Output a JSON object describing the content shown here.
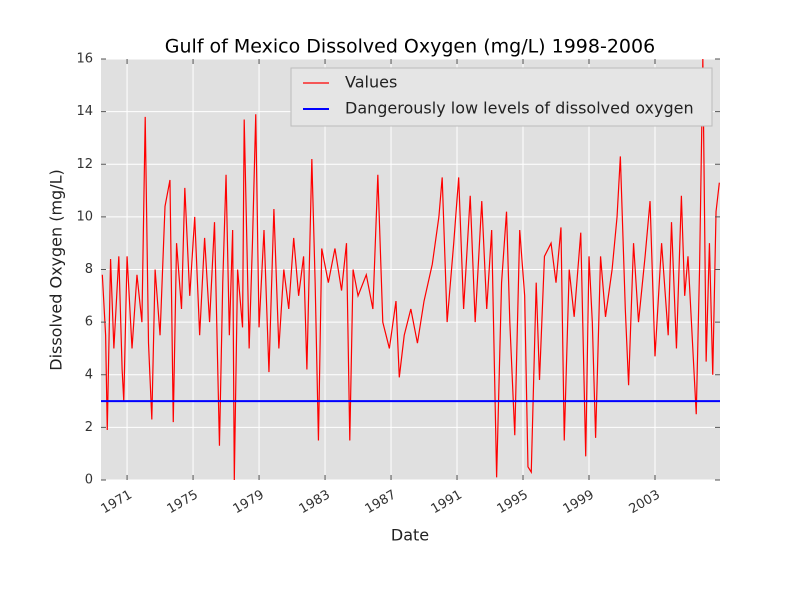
{
  "chart_data": {
    "type": "line",
    "title": "Gulf of Mexico Dissolved Oxygen (mg/L) 1998-2006",
    "x_label": "Date",
    "y_label": "Dissolved Oxygen (mg/L)",
    "xlim": [
      1969.42,
      2006.94
    ],
    "ylim": [
      0,
      16
    ],
    "xticks": [
      1971,
      1975,
      1979,
      1983,
      1987,
      1991,
      1995,
      1999,
      2003
    ],
    "yticks": [
      0,
      2,
      4,
      6,
      8,
      10,
      12,
      14,
      16
    ],
    "grid": true,
    "legend": "upper right",
    "x": [
      1969.5,
      1969.7,
      1969.8,
      1970.0,
      1970.2,
      1970.5,
      1970.7,
      1970.8,
      1971.0,
      1971.3,
      1971.6,
      1971.9,
      1972.1,
      1972.3,
      1972.5,
      1972.7,
      1973.0,
      1973.3,
      1973.6,
      1973.8,
      1974.0,
      1974.3,
      1974.5,
      1974.8,
      1975.1,
      1975.4,
      1975.7,
      1976.0,
      1976.3,
      1976.6,
      1976.8,
      1977.0,
      1977.2,
      1977.4,
      1977.5,
      1977.7,
      1978.0,
      1978.1,
      1978.4,
      1978.6,
      1978.8,
      1979.0,
      1979.3,
      1979.6,
      1979.9,
      1980.2,
      1980.5,
      1980.8,
      1981.1,
      1981.4,
      1981.7,
      1981.9,
      1982.2,
      1982.4,
      1982.6,
      1982.8,
      1983.2,
      1983.6,
      1984.0,
      1984.3,
      1984.5,
      1984.7,
      1985.0,
      1985.5,
      1985.9,
      1986.2,
      1986.5,
      1986.9,
      1987.3,
      1987.5,
      1987.8,
      1988.2,
      1988.6,
      1989.0,
      1989.5,
      1989.9,
      1990.1,
      1990.4,
      1990.8,
      1991.1,
      1991.4,
      1991.8,
      1992.1,
      1992.5,
      1992.8,
      1993.1,
      1993.4,
      1993.7,
      1994.0,
      1994.2,
      1994.5,
      1994.8,
      1995.1,
      1995.3,
      1995.5,
      1995.8,
      1996.0,
      1996.3,
      1996.7,
      1997.0,
      1997.3,
      1997.5,
      1997.8,
      1998.1,
      1998.5,
      1998.8,
      1999.0,
      1999.2,
      1999.4,
      1999.7,
      2000.0,
      2000.4,
      2000.7,
      2000.9,
      2001.2,
      2001.4,
      2001.7,
      2002.0,
      2002.4,
      2002.7,
      2003.0,
      2003.4,
      2003.8,
      2004.0,
      2004.3,
      2004.6,
      2004.8,
      2005.0,
      2005.5,
      2005.7,
      2005.9,
      2006.1,
      2006.3,
      2006.5,
      2006.7,
      2006.9
    ],
    "series": [
      {
        "name": "Values",
        "color": "#ff0000",
        "values": [
          7.8,
          5.5,
          1.9,
          8.4,
          5.0,
          8.5,
          4.2,
          3.0,
          8.5,
          5.0,
          7.8,
          6.0,
          13.8,
          5.2,
          2.3,
          8.0,
          5.5,
          10.4,
          11.4,
          2.2,
          9.0,
          6.5,
          11.1,
          7.0,
          10.0,
          5.5,
          9.2,
          6.0,
          9.8,
          1.3,
          7.5,
          11.6,
          5.5,
          9.5,
          0.0,
          8.0,
          5.8,
          13.7,
          5.0,
          9.0,
          13.9,
          5.8,
          9.5,
          4.1,
          10.3,
          5.0,
          8.0,
          6.5,
          9.2,
          7.0,
          8.5,
          4.2,
          12.2,
          7.5,
          1.5,
          8.8,
          7.5,
          8.8,
          7.2,
          9.0,
          1.5,
          8.0,
          7.0,
          7.8,
          6.5,
          11.6,
          6.0,
          5.0,
          6.8,
          3.9,
          5.5,
          6.5,
          5.2,
          6.8,
          8.2,
          10.0,
          11.5,
          6.0,
          9.0,
          11.5,
          6.5,
          10.8,
          6.0,
          10.6,
          6.5,
          9.5,
          0.1,
          7.5,
          10.2,
          6.0,
          1.7,
          9.5,
          7.0,
          0.5,
          0.3,
          7.5,
          3.8,
          8.5,
          9.0,
          7.5,
          9.6,
          1.5,
          8.0,
          6.2,
          9.4,
          0.9,
          8.5,
          6.0,
          1.6,
          8.5,
          6.2,
          8.0,
          10.0,
          12.3,
          6.5,
          3.6,
          9.0,
          6.0,
          8.5,
          10.6,
          4.7,
          9.0,
          5.5,
          9.8,
          5.0,
          10.8,
          7.0,
          8.5,
          2.5,
          8.0,
          16.0,
          4.5,
          9.0,
          4.0,
          10.2,
          11.3
        ]
      }
    ],
    "hlines": [
      {
        "name": "Dangerously low levels of dissolved oxygen",
        "color": "#0000ff",
        "value": 3
      }
    ]
  }
}
